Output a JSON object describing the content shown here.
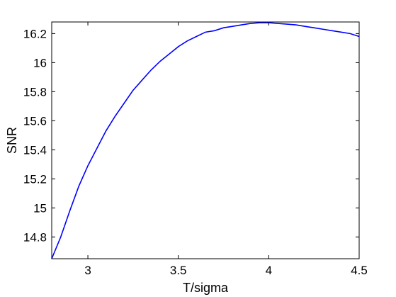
{
  "chart_data": {
    "type": "line",
    "xlabel": "T/sigma",
    "ylabel": "SNR",
    "xlim": [
      2.8,
      4.5
    ],
    "ylim": [
      14.65,
      16.28
    ],
    "xticks": [
      3,
      3.5,
      4,
      4.5
    ],
    "xtick_labels": [
      "3",
      "3.5",
      "4",
      "4.5"
    ],
    "yticks": [
      14.8,
      15.0,
      15.2,
      15.4,
      15.6,
      15.8,
      16.0,
      16.2
    ],
    "ytick_labels": [
      "14.8",
      "15",
      "15.2",
      "15.4",
      "15.6",
      "15.8",
      "16",
      "16.2"
    ],
    "grid": false,
    "line_color": "#0000ff",
    "series": [
      {
        "x": [
          2.8,
          2.85,
          2.9,
          2.95,
          3.0,
          3.05,
          3.1,
          3.15,
          3.2,
          3.25,
          3.3,
          3.35,
          3.4,
          3.45,
          3.5,
          3.55,
          3.6,
          3.65,
          3.7,
          3.75,
          3.8,
          3.85,
          3.9,
          3.95,
          4.0,
          4.05,
          4.1,
          4.15,
          4.2,
          4.25,
          4.3,
          4.35,
          4.4,
          4.45,
          4.5
        ],
        "values": [
          14.65,
          14.8,
          14.98,
          15.15,
          15.29,
          15.41,
          15.53,
          15.63,
          15.72,
          15.81,
          15.88,
          15.95,
          16.01,
          16.06,
          16.11,
          16.15,
          16.18,
          16.21,
          16.22,
          16.24,
          16.25,
          16.26,
          16.27,
          16.275,
          16.275,
          16.27,
          16.265,
          16.26,
          16.25,
          16.24,
          16.23,
          16.22,
          16.21,
          16.2,
          16.18
        ]
      }
    ]
  }
}
